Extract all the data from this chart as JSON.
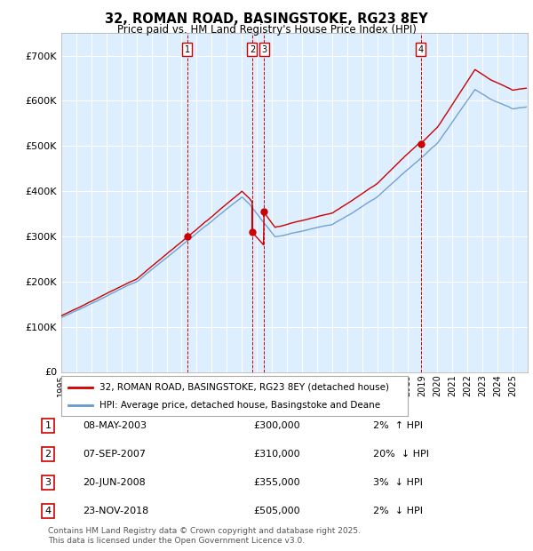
{
  "title": "32, ROMAN ROAD, BASINGSTOKE, RG23 8EY",
  "subtitle": "Price paid vs. HM Land Registry's House Price Index (HPI)",
  "background_color": "#ffffff",
  "plot_bg_color": "#ddeeff",
  "grid_color": "#ffffff",
  "hpi_line_color": "#6699cc",
  "price_line_color": "#cc0000",
  "ylim": [
    0,
    750000
  ],
  "yticks": [
    0,
    100000,
    200000,
    300000,
    400000,
    500000,
    600000,
    700000
  ],
  "ytick_labels": [
    "£0",
    "£100K",
    "£200K",
    "£300K",
    "£400K",
    "£500K",
    "£600K",
    "£700K"
  ],
  "transactions": [
    {
      "num": 1,
      "date": "08-MAY-2003",
      "price": 300000,
      "year": 2003.36,
      "pct": "2%",
      "dir": "↑"
    },
    {
      "num": 2,
      "date": "07-SEP-2007",
      "price": 310000,
      "year": 2007.69,
      "pct": "20%",
      "dir": "↓"
    },
    {
      "num": 3,
      "date": "20-JUN-2008",
      "price": 355000,
      "year": 2008.47,
      "pct": "3%",
      "dir": "↓"
    },
    {
      "num": 4,
      "date": "23-NOV-2018",
      "price": 505000,
      "year": 2018.9,
      "pct": "2%",
      "dir": "↓"
    }
  ],
  "legend_label_price": "32, ROMAN ROAD, BASINGSTOKE, RG23 8EY (detached house)",
  "legend_label_hpi": "HPI: Average price, detached house, Basingstoke and Deane",
  "footnote": "Contains HM Land Registry data © Crown copyright and database right 2025.\nThis data is licensed under the Open Government Licence v3.0.",
  "xmin": 1995,
  "xmax": 2026,
  "figsize": [
    6.0,
    6.2
  ],
  "dpi": 100
}
